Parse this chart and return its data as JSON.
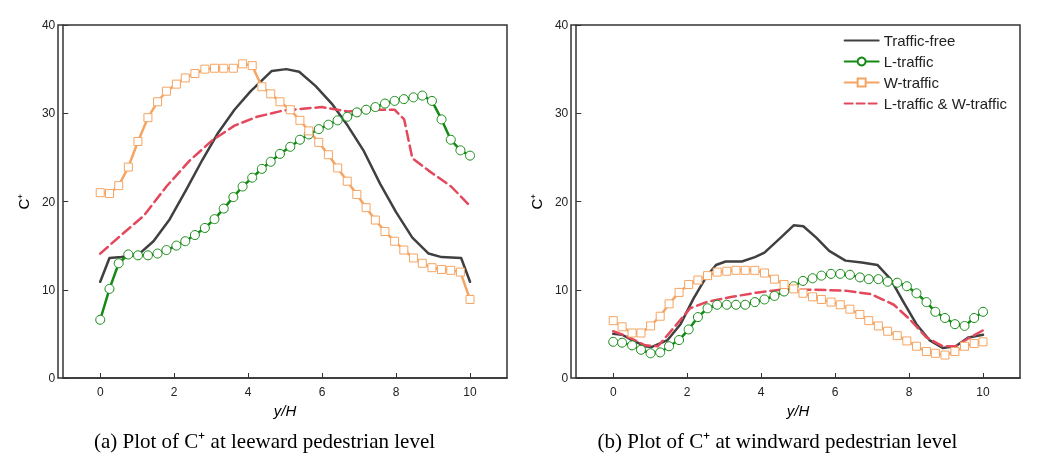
{
  "chart_data": [
    {
      "type": "line",
      "title": "(a) Plot of C⁺ at leeward pedestrian level",
      "xlabel": "y/H",
      "ylabel": "C⁺",
      "xlim": [
        -1,
        11
      ],
      "xticks": [
        0,
        2,
        4,
        6,
        8,
        10
      ],
      "ylim": [
        0,
        40
      ],
      "yticks": [
        0,
        10,
        20,
        30,
        40
      ],
      "grid": false,
      "legend": false,
      "series": [
        {
          "color": "#404040",
          "marker": "none",
          "line_style": "solid",
          "x": [
            0,
            0.25,
            0.57,
            1.01,
            1.44,
            1.88,
            2.32,
            2.76,
            3.19,
            3.63,
            4.07,
            4.64,
            5.03,
            5.38,
            5.82,
            6.26,
            6.69,
            7.13,
            7.57,
            8.0,
            8.44,
            8.88,
            9.23,
            9.76,
            10
          ],
          "values": [
            10.9,
            13.6,
            13.7,
            13.9,
            15.5,
            18.0,
            21.3,
            24.7,
            27.8,
            30.4,
            32.5,
            34.8,
            35.0,
            34.7,
            33.1,
            31.1,
            28.6,
            25.7,
            22.0,
            18.8,
            15.9,
            14.1,
            13.7,
            13.6,
            10.9
          ]
        },
        {
          "color": "#138a13",
          "marker": "circle",
          "line_style": "solid",
          "x": [
            0,
            0.25,
            0.5,
            0.76,
            1.02,
            1.29,
            1.55,
            1.79,
            2.06,
            2.3,
            2.56,
            2.83,
            3.09,
            3.34,
            3.6,
            3.85,
            4.11,
            4.37,
            4.61,
            4.86,
            5.14,
            5.4,
            5.64,
            5.91,
            6.17,
            6.42,
            6.68,
            6.94,
            7.19,
            7.44,
            7.7,
            7.96,
            8.21,
            8.47,
            8.71,
            8.97,
            9.23,
            9.48,
            9.74,
            10
          ],
          "values": [
            6.6,
            10.1,
            13.0,
            14.0,
            13.9,
            13.9,
            14.1,
            14.5,
            15.0,
            15.5,
            16.2,
            17.0,
            18.0,
            19.2,
            20.5,
            21.7,
            22.7,
            23.7,
            24.5,
            25.4,
            26.2,
            27.0,
            27.6,
            28.2,
            28.7,
            29.2,
            29.6,
            30.1,
            30.4,
            30.7,
            31.1,
            31.4,
            31.6,
            31.8,
            32.0,
            31.4,
            29.3,
            27.0,
            25.8,
            25.2
          ]
        },
        {
          "color": "#f5a462",
          "marker": "square",
          "line_style": "solid",
          "x": [
            0,
            0.25,
            0.5,
            0.76,
            1.02,
            1.29,
            1.55,
            1.79,
            2.06,
            2.3,
            2.56,
            2.83,
            3.09,
            3.34,
            3.6,
            3.85,
            4.11,
            4.37,
            4.61,
            4.86,
            5.14,
            5.4,
            5.64,
            5.91,
            6.17,
            6.42,
            6.68,
            6.94,
            7.19,
            7.44,
            7.7,
            7.96,
            8.21,
            8.47,
            8.71,
            8.97,
            9.23,
            9.48,
            9.74,
            10
          ],
          "values": [
            21.0,
            20.9,
            21.8,
            23.9,
            26.8,
            29.5,
            31.3,
            32.5,
            33.3,
            34.0,
            34.5,
            35.0,
            35.1,
            35.1,
            35.1,
            35.6,
            35.4,
            33.0,
            32.2,
            31.3,
            30.4,
            29.2,
            28.0,
            26.7,
            25.3,
            23.8,
            22.3,
            20.8,
            19.3,
            17.9,
            16.6,
            15.5,
            14.5,
            13.6,
            13.0,
            12.5,
            12.3,
            12.2,
            12.0,
            8.9
          ]
        },
        {
          "color": "#e4485c",
          "marker": "none",
          "line_style": "dashed",
          "x": [
            0,
            0.57,
            1.18,
            1.79,
            2.41,
            3.02,
            3.63,
            4.24,
            4.94,
            5.99,
            6.69,
            7.31,
            7.96,
            8.22,
            8.44,
            8.88,
            9.49,
            10
          ],
          "values": [
            14.1,
            16.2,
            18.4,
            21.7,
            24.6,
            26.9,
            28.6,
            29.6,
            30.3,
            30.7,
            30.2,
            30.4,
            30.4,
            29.3,
            24.9,
            23.5,
            21.7,
            19.5
          ]
        }
      ]
    },
    {
      "type": "line",
      "title": "(b) Plot of C⁺ at windward pedestrian level",
      "xlabel": "y/H",
      "ylabel": "C⁺",
      "xlim": [
        -1,
        11
      ],
      "xticks": [
        0,
        2,
        4,
        6,
        8,
        10
      ],
      "ylim": [
        0,
        40
      ],
      "yticks": [
        0,
        10,
        20,
        30,
        40
      ],
      "grid": false,
      "legend": "top right",
      "series": [
        {
          "name": "Traffic-free",
          "color": "#404040",
          "marker": "none",
          "line_style": "solid",
          "x": [
            0,
            0.24,
            0.51,
            0.86,
            1.03,
            1.47,
            1.82,
            2.17,
            2.52,
            2.78,
            3.04,
            3.48,
            3.83,
            4.09,
            4.53,
            4.88,
            5.14,
            5.49,
            5.84,
            6.28,
            6.72,
            7.15,
            7.5,
            7.85,
            8.2,
            8.55,
            8.91,
            9.26,
            9.61,
            10
          ],
          "values": [
            5.0,
            4.9,
            4.3,
            3.6,
            3.5,
            4.3,
            6.1,
            9.0,
            11.5,
            12.8,
            13.2,
            13.2,
            13.7,
            14.2,
            15.9,
            17.3,
            17.2,
            15.9,
            14.4,
            13.3,
            13.1,
            12.8,
            11.2,
            8.6,
            6.1,
            4.3,
            3.4,
            3.6,
            4.6,
            4.9
          ]
        },
        {
          "name": "L-traffic",
          "color": "#138a13",
          "marker": "circle",
          "line_style": "solid",
          "x": [
            0,
            0.24,
            0.51,
            0.75,
            1.01,
            1.27,
            1.51,
            1.78,
            2.04,
            2.29,
            2.55,
            2.81,
            3.07,
            3.32,
            3.57,
            3.83,
            4.09,
            4.36,
            4.62,
            4.88,
            5.13,
            5.39,
            5.63,
            5.89,
            6.14,
            6.4,
            6.67,
            6.91,
            7.17,
            7.42,
            7.68,
            7.94,
            8.2,
            8.47,
            8.71,
            8.97,
            9.24,
            9.5,
            9.76,
            10
          ],
          "values": [
            4.1,
            4.0,
            3.7,
            3.2,
            2.8,
            2.9,
            3.6,
            4.3,
            5.5,
            6.9,
            7.9,
            8.3,
            8.3,
            8.3,
            8.3,
            8.6,
            8.9,
            9.3,
            9.8,
            10.4,
            11.0,
            11.3,
            11.6,
            11.8,
            11.8,
            11.7,
            11.4,
            11.2,
            11.2,
            10.9,
            10.8,
            10.4,
            9.6,
            8.6,
            7.5,
            6.8,
            6.1,
            5.9,
            6.8,
            7.5
          ]
        },
        {
          "name": "W-traffic",
          "color": "#f5a462",
          "marker": "square",
          "line_style": "solid",
          "x": [
            0,
            0.24,
            0.51,
            0.75,
            1.01,
            1.27,
            1.51,
            1.78,
            2.04,
            2.29,
            2.55,
            2.81,
            3.07,
            3.32,
            3.57,
            3.83,
            4.09,
            4.36,
            4.62,
            4.88,
            5.13,
            5.39,
            5.63,
            5.89,
            6.14,
            6.4,
            6.67,
            6.91,
            7.17,
            7.42,
            7.68,
            7.94,
            8.2,
            8.47,
            8.71,
            8.97,
            9.24,
            9.5,
            9.76,
            10
          ],
          "values": [
            6.5,
            5.8,
            5.1,
            5.1,
            5.9,
            7.0,
            8.4,
            9.7,
            10.6,
            11.1,
            11.6,
            12.0,
            12.1,
            12.2,
            12.2,
            12.2,
            11.9,
            11.2,
            10.6,
            10.1,
            9.6,
            9.2,
            8.9,
            8.6,
            8.3,
            7.8,
            7.2,
            6.5,
            5.9,
            5.3,
            4.8,
            4.2,
            3.6,
            3.0,
            2.8,
            2.6,
            3.0,
            3.6,
            3.9,
            4.1
          ]
        },
        {
          "name": "L-traffic & W-traffic",
          "color": "#e4485c",
          "marker": "none",
          "line_style": "dashed",
          "x": [
            0,
            0.33,
            0.86,
            1.21,
            1.64,
            2.08,
            2.52,
            3.22,
            3.92,
            4.53,
            5.4,
            6.28,
            6.98,
            7.59,
            8.03,
            8.47,
            8.91,
            9.26,
            9.61,
            10
          ],
          "values": [
            5.3,
            4.8,
            3.7,
            3.6,
            5.7,
            7.9,
            8.6,
            9.2,
            9.7,
            10.0,
            10.0,
            9.9,
            9.5,
            8.3,
            6.6,
            4.6,
            3.6,
            3.6,
            4.5,
            5.4
          ]
        }
      ]
    }
  ]
}
